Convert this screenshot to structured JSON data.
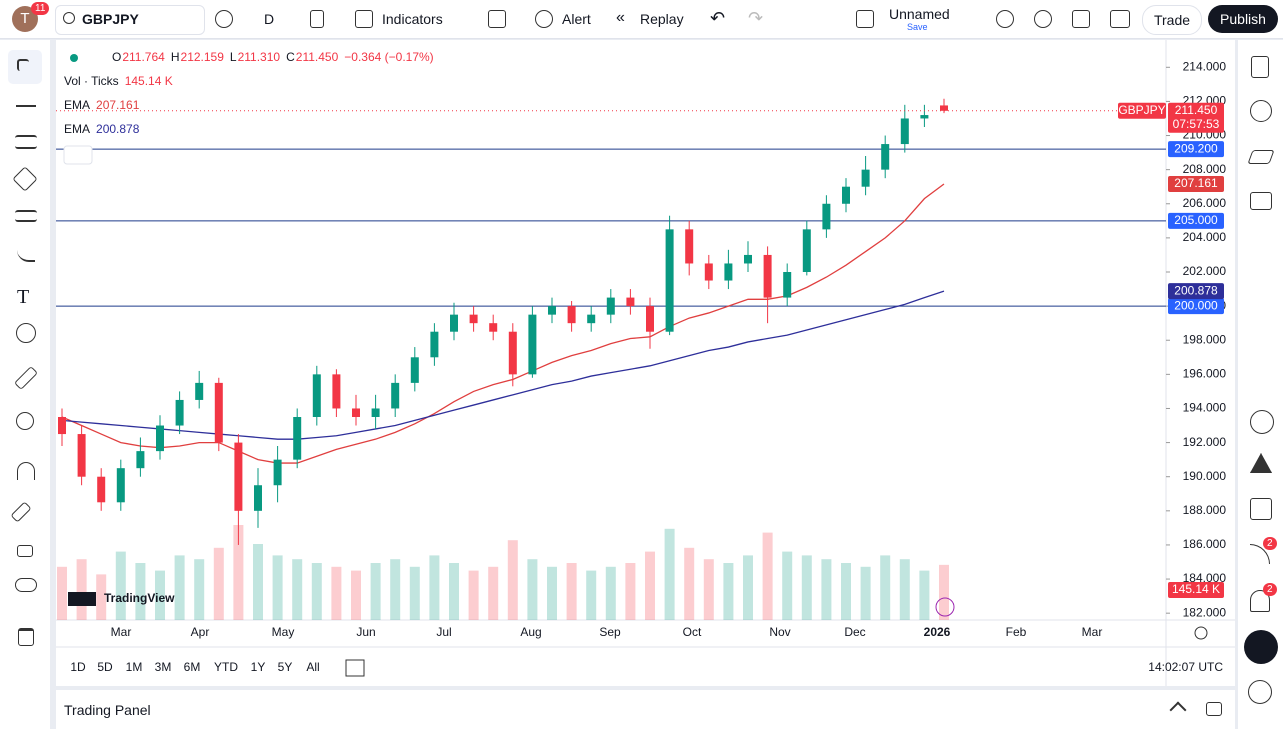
{
  "header": {
    "avatar": "T",
    "notifications": "11",
    "symbol": "GBPJPY",
    "interval": "D",
    "indicators": "Indicators",
    "alert": "Alert",
    "replay": "Replay",
    "layout_name": "Unnamed",
    "save": "Save",
    "trade": "Trade",
    "publish": "Publish"
  },
  "chart_data": {
    "type": "candlestick",
    "symbol": "GBPJPY",
    "legend": [
      {
        "label": "O",
        "value": "211.764"
      },
      {
        "label": "H",
        "value": "212.159"
      },
      {
        "label": "L",
        "value": "211.310"
      },
      {
        "label": "C",
        "value": "211.450"
      }
    ],
    "change": "−0.364 (−0.17%)",
    "volume_title": "Vol · Ticks",
    "volume_label": "145.14 K",
    "up_color": "#089981",
    "down_color": "#f23645",
    "candles": [
      [
        193.5,
        194,
        191.8,
        192.5
      ],
      [
        192.5,
        193,
        189.5,
        190
      ],
      [
        190,
        190.5,
        188,
        188.5
      ],
      [
        188.5,
        191,
        188,
        190.5
      ],
      [
        190.5,
        192.3,
        190,
        191.5
      ],
      [
        191.5,
        193.6,
        191,
        193
      ],
      [
        193,
        195,
        192.5,
        194.5
      ],
      [
        194.5,
        196.2,
        194,
        195.5
      ],
      [
        195.5,
        195.8,
        191.5,
        192
      ],
      [
        192,
        192.5,
        186,
        188
      ],
      [
        188,
        190.5,
        187,
        189.5
      ],
      [
        189.5,
        191.8,
        188.5,
        191
      ],
      [
        191,
        194,
        190.5,
        193.5
      ],
      [
        193.5,
        196.5,
        193,
        196
      ],
      [
        196,
        196.3,
        193.5,
        194
      ],
      [
        194,
        194.8,
        193,
        193.5
      ],
      [
        193.5,
        194.8,
        192.8,
        194
      ],
      [
        194,
        196,
        193.5,
        195.5
      ],
      [
        195.5,
        197.6,
        195,
        197
      ],
      [
        197,
        199,
        196.5,
        198.5
      ],
      [
        198.5,
        200.2,
        198,
        199.5
      ],
      [
        199.5,
        200,
        198.5,
        199
      ],
      [
        199,
        199.5,
        198,
        198.5
      ],
      [
        198.5,
        199,
        195.3,
        196
      ],
      [
        196,
        200,
        195.8,
        199.5
      ],
      [
        199.5,
        200.5,
        199,
        200
      ],
      [
        200,
        200.3,
        198.5,
        199
      ],
      [
        199,
        200,
        198.5,
        199.5
      ],
      [
        199.5,
        201,
        199,
        200.5
      ],
      [
        200.5,
        201,
        199.5,
        200
      ],
      [
        200,
        200.5,
        197.5,
        198.5
      ],
      [
        198.5,
        205.3,
        198.3,
        204.5
      ],
      [
        204.5,
        205,
        201.8,
        202.5
      ],
      [
        202.5,
        203,
        201,
        201.5
      ],
      [
        201.5,
        203.3,
        201,
        202.5
      ],
      [
        202.5,
        203.8,
        202,
        203
      ],
      [
        203,
        203.5,
        199,
        200.5
      ],
      [
        200.5,
        202.5,
        200,
        202
      ],
      [
        202,
        205,
        201.8,
        204.5
      ],
      [
        204.5,
        206.5,
        204,
        206
      ],
      [
        206,
        207.5,
        205.5,
        207
      ],
      [
        207,
        208.8,
        206.5,
        208
      ],
      [
        208,
        210,
        207.5,
        209.5
      ],
      [
        209.5,
        211.8,
        209,
        211
      ],
      [
        211,
        211.8,
        210.5,
        211.2
      ],
      [
        211.764,
        212.159,
        211.31,
        211.45
      ]
    ],
    "volume": [
      140,
      160,
      120,
      180,
      150,
      130,
      170,
      160,
      190,
      250,
      200,
      170,
      160,
      150,
      140,
      130,
      150,
      160,
      140,
      170,
      150,
      130,
      140,
      210,
      160,
      140,
      150,
      130,
      140,
      150,
      180,
      240,
      190,
      160,
      150,
      170,
      230,
      180,
      170,
      160,
      150,
      140,
      170,
      160,
      130,
      145.14
    ],
    "series": [
      {
        "name": "EMA",
        "color": "#e03f3f",
        "last_label": "207.161",
        "values": [
          193.5,
          193,
          192.5,
          192,
          191.8,
          191.7,
          191.8,
          192,
          192,
          191.5,
          191,
          190.8,
          190.8,
          191.2,
          191.6,
          191.9,
          192.2,
          192.6,
          193.1,
          193.7,
          194.4,
          195,
          195.4,
          195.7,
          196.2,
          196.7,
          197.1,
          197.4,
          197.8,
          198.1,
          198.2,
          198.8,
          199.3,
          199.6,
          200,
          200.4,
          200.4,
          200.6,
          201.1,
          201.7,
          202.4,
          203.2,
          204,
          205,
          206.3,
          207.161
        ]
      },
      {
        "name": "EMA",
        "color": "#2e2f9a",
        "last_label": "200.878",
        "values": [
          193.3,
          193.2,
          193.1,
          193,
          192.9,
          192.8,
          192.7,
          192.6,
          192.5,
          192.4,
          192.3,
          192.2,
          192.2,
          192.3,
          192.4,
          192.6,
          192.8,
          193,
          193.3,
          193.6,
          193.9,
          194.2,
          194.5,
          194.8,
          195.1,
          195.4,
          195.6,
          195.9,
          196.1,
          196.3,
          196.5,
          196.8,
          197.1,
          197.4,
          197.6,
          197.9,
          198.1,
          198.3,
          198.6,
          198.9,
          199.2,
          199.5,
          199.8,
          200.1,
          200.5,
          200.878
        ]
      }
    ],
    "hlines": [
      {
        "value": 209.2,
        "label": "209.200"
      },
      {
        "value": 205,
        "label": "205.000"
      },
      {
        "value": 200,
        "label": "200.000"
      }
    ],
    "last_price": {
      "value": 211.45,
      "label": "211.450"
    },
    "countdown": "07:57:53",
    "ylim": [
      181.6,
      215.6
    ],
    "yticks": [
      {
        "value": 182,
        "label": "182.000"
      },
      {
        "value": 184,
        "label": "184.000"
      },
      {
        "value": 186,
        "label": "186.000"
      },
      {
        "value": 188,
        "label": "188.000"
      },
      {
        "value": 190,
        "label": "190.000"
      },
      {
        "value": 192,
        "label": "192.000"
      },
      {
        "value": 194,
        "label": "194.000"
      },
      {
        "value": 196,
        "label": "196.000"
      },
      {
        "value": 198,
        "label": "198.000"
      },
      {
        "value": 200,
        "label": "200.000"
      },
      {
        "value": 202,
        "label": "202.000"
      },
      {
        "value": 204,
        "label": "204.000"
      },
      {
        "value": 206,
        "label": "206.000"
      },
      {
        "value": 208,
        "label": "208.000"
      },
      {
        "value": 210,
        "label": "210.000"
      },
      {
        "value": 212,
        "label": "212.000"
      },
      {
        "value": 214,
        "label": "214.000"
      }
    ],
    "x_labels": [
      "Mar",
      "Apr",
      "May",
      "Jun",
      "Jul",
      "Aug",
      "Sep",
      "Oct",
      "Nov",
      "Dec",
      "2026",
      "Feb",
      "Mar"
    ],
    "watermark": "TradingView"
  },
  "footer": {
    "ranges": [
      "1D",
      "5D",
      "1M",
      "3M",
      "6M",
      "YTD",
      "1Y",
      "5Y",
      "All"
    ],
    "clock": "14:02:07 UTC",
    "trading_panel": "Trading Panel"
  },
  "sidebar": {
    "badges": [
      "2",
      "2"
    ]
  }
}
